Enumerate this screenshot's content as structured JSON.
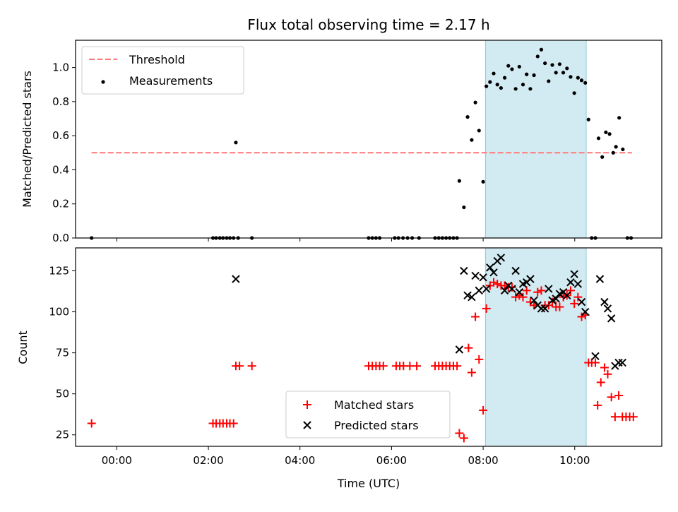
{
  "title": "Flux total observing time = 2.17 h",
  "colors": {
    "threshold": "#ff7777",
    "measurement": "#000000",
    "matched": "#ff0000",
    "predicted": "#000000",
    "shade": "#add8e6"
  },
  "chart_data": [
    {
      "type": "scatter",
      "ylabel": "Matched/Predicted stars",
      "xlabel": "",
      "xlim": [
        -0.9,
        11.9
      ],
      "ylim": [
        0,
        1.16
      ],
      "yticks": [
        0.0,
        0.2,
        0.4,
        0.6,
        0.8,
        1.0
      ],
      "ytick_labels": [
        "0.0",
        "0.2",
        "0.4",
        "0.6",
        "0.8",
        "1.0"
      ],
      "xticks": [
        0,
        2,
        4,
        6,
        8,
        10
      ],
      "shaded_span": [
        8.05,
        10.25
      ],
      "legend": {
        "position": "upper-left",
        "threshold": "Threshold",
        "measurements": "Measurements"
      },
      "threshold": {
        "value": 0.5,
        "x_range": [
          -0.55,
          11.25
        ]
      },
      "measurements": [
        [
          -0.55,
          0.0
        ],
        [
          2.1,
          0.0
        ],
        [
          2.17,
          0.0
        ],
        [
          2.25,
          0.0
        ],
        [
          2.32,
          0.0
        ],
        [
          2.4,
          0.0
        ],
        [
          2.47,
          0.0
        ],
        [
          2.55,
          0.0
        ],
        [
          2.6,
          0.56
        ],
        [
          2.65,
          0.0
        ],
        [
          2.95,
          0.0
        ],
        [
          5.5,
          0.0
        ],
        [
          5.58,
          0.0
        ],
        [
          5.66,
          0.0
        ],
        [
          5.74,
          0.0
        ],
        [
          6.07,
          0.0
        ],
        [
          6.15,
          0.0
        ],
        [
          6.25,
          0.0
        ],
        [
          6.35,
          0.0
        ],
        [
          6.45,
          0.0
        ],
        [
          6.6,
          0.0
        ],
        [
          6.95,
          0.0
        ],
        [
          7.03,
          0.0
        ],
        [
          7.11,
          0.0
        ],
        [
          7.19,
          0.0
        ],
        [
          7.27,
          0.0
        ],
        [
          7.35,
          0.0
        ],
        [
          7.43,
          0.0
        ],
        [
          7.48,
          0.335
        ],
        [
          7.58,
          0.18
        ],
        [
          7.66,
          0.71
        ],
        [
          7.75,
          0.575
        ],
        [
          7.83,
          0.795
        ],
        [
          7.91,
          0.63
        ],
        [
          8.0,
          0.33
        ],
        [
          8.07,
          0.89
        ],
        [
          8.15,
          0.915
        ],
        [
          8.23,
          0.965
        ],
        [
          8.31,
          0.9
        ],
        [
          8.39,
          0.88
        ],
        [
          8.47,
          0.94
        ],
        [
          8.55,
          1.01
        ],
        [
          8.63,
          0.99
        ],
        [
          8.71,
          0.875
        ],
        [
          8.79,
          1.005
        ],
        [
          8.87,
          0.9
        ],
        [
          8.95,
          0.96
        ],
        [
          9.03,
          0.875
        ],
        [
          9.11,
          0.955
        ],
        [
          9.19,
          1.065
        ],
        [
          9.27,
          1.105
        ],
        [
          9.35,
          1.025
        ],
        [
          9.43,
          0.92
        ],
        [
          9.51,
          1.015
        ],
        [
          9.59,
          0.97
        ],
        [
          9.67,
          1.02
        ],
        [
          9.75,
          0.97
        ],
        [
          9.83,
          0.995
        ],
        [
          9.91,
          0.945
        ],
        [
          9.99,
          0.85
        ],
        [
          10.07,
          0.94
        ],
        [
          10.15,
          0.925
        ],
        [
          10.23,
          0.91
        ],
        [
          10.3,
          0.695
        ],
        [
          10.37,
          0.0
        ],
        [
          10.45,
          0.0
        ],
        [
          10.52,
          0.585
        ],
        [
          10.6,
          0.475
        ],
        [
          10.68,
          0.62
        ],
        [
          10.76,
          0.61
        ],
        [
          10.84,
          0.5
        ],
        [
          10.9,
          0.535
        ],
        [
          10.97,
          0.705
        ],
        [
          11.05,
          0.52
        ],
        [
          11.15,
          0.0
        ],
        [
          11.23,
          0.0
        ]
      ]
    },
    {
      "type": "scatter",
      "ylabel": "Count",
      "xlabel": "Time (UTC)",
      "xlim": [
        -0.9,
        11.9
      ],
      "ylim": [
        18,
        139
      ],
      "yticks": [
        25,
        50,
        75,
        100,
        125
      ],
      "ytick_labels": [
        "25",
        "50",
        "75",
        "100",
        "125"
      ],
      "xticks": [
        0,
        2,
        4,
        6,
        8,
        10
      ],
      "xtick_labels": [
        "00:00",
        "02:00",
        "04:00",
        "06:00",
        "08:00",
        "10:00"
      ],
      "shaded_span": [
        8.05,
        10.25
      ],
      "legend": {
        "position": "lower-center",
        "matched": "Matched stars",
        "predicted": "Predicted stars"
      },
      "series": [
        {
          "name": "Matched stars",
          "marker": "plus",
          "points": [
            [
              -0.55,
              32
            ],
            [
              2.1,
              32
            ],
            [
              2.17,
              32
            ],
            [
              2.25,
              32
            ],
            [
              2.32,
              32
            ],
            [
              2.4,
              32
            ],
            [
              2.47,
              32
            ],
            [
              2.55,
              32
            ],
            [
              2.6,
              67
            ],
            [
              2.68,
              67
            ],
            [
              2.95,
              67
            ],
            [
              5.5,
              67
            ],
            [
              5.58,
              67
            ],
            [
              5.66,
              67
            ],
            [
              5.74,
              67
            ],
            [
              5.82,
              67
            ],
            [
              6.1,
              67
            ],
            [
              6.18,
              67
            ],
            [
              6.26,
              67
            ],
            [
              6.4,
              67
            ],
            [
              6.55,
              67
            ],
            [
              6.95,
              67
            ],
            [
              7.03,
              67
            ],
            [
              7.11,
              67
            ],
            [
              7.19,
              67
            ],
            [
              7.27,
              67
            ],
            [
              7.35,
              67
            ],
            [
              7.43,
              67
            ],
            [
              7.48,
              26
            ],
            [
              7.58,
              23
            ],
            [
              7.68,
              78
            ],
            [
              7.75,
              63
            ],
            [
              7.83,
              97
            ],
            [
              7.91,
              71
            ],
            [
              8.0,
              40
            ],
            [
              8.07,
              102
            ],
            [
              8.15,
              116
            ],
            [
              8.23,
              118
            ],
            [
              8.31,
              117
            ],
            [
              8.39,
              116
            ],
            [
              8.47,
              116
            ],
            [
              8.55,
              115
            ],
            [
              8.63,
              115
            ],
            [
              8.71,
              109
            ],
            [
              8.79,
              110
            ],
            [
              8.87,
              109
            ],
            [
              8.95,
              113
            ],
            [
              9.03,
              106
            ],
            [
              9.11,
              104
            ],
            [
              9.19,
              112
            ],
            [
              9.27,
              113
            ],
            [
              9.35,
              104
            ],
            [
              9.43,
              104
            ],
            [
              9.51,
              106
            ],
            [
              9.59,
              103
            ],
            [
              9.67,
              103
            ],
            [
              9.75,
              109
            ],
            [
              9.83,
              110
            ],
            [
              9.91,
              113
            ],
            [
              9.99,
              105
            ],
            [
              10.07,
              109
            ],
            [
              10.15,
              97
            ],
            [
              10.23,
              98
            ],
            [
              10.3,
              69
            ],
            [
              10.37,
              69
            ],
            [
              10.45,
              69
            ],
            [
              10.5,
              43
            ],
            [
              10.57,
              57
            ],
            [
              10.65,
              66
            ],
            [
              10.72,
              62
            ],
            [
              10.8,
              48
            ],
            [
              10.88,
              36
            ],
            [
              10.96,
              49
            ],
            [
              11.04,
              36
            ],
            [
              11.12,
              36
            ],
            [
              11.2,
              36
            ],
            [
              11.28,
              36
            ]
          ]
        },
        {
          "name": "Predicted stars",
          "marker": "x",
          "points": [
            [
              2.6,
              120
            ],
            [
              7.48,
              77
            ],
            [
              7.58,
              125
            ],
            [
              7.66,
              110
            ],
            [
              7.75,
              109
            ],
            [
              7.83,
              122
            ],
            [
              7.91,
              113
            ],
            [
              8.0,
              121
            ],
            [
              8.07,
              114
            ],
            [
              8.15,
              127
            ],
            [
              8.23,
              124
            ],
            [
              8.31,
              131
            ],
            [
              8.39,
              133
            ],
            [
              8.47,
              113
            ],
            [
              8.55,
              116
            ],
            [
              8.63,
              114
            ],
            [
              8.71,
              125
            ],
            [
              8.79,
              112
            ],
            [
              8.87,
              117
            ],
            [
              8.95,
              118
            ],
            [
              9.03,
              120
            ],
            [
              9.11,
              107
            ],
            [
              9.19,
              104
            ],
            [
              9.27,
              102
            ],
            [
              9.35,
              102
            ],
            [
              9.43,
              114
            ],
            [
              9.51,
              107
            ],
            [
              9.59,
              108
            ],
            [
              9.67,
              111
            ],
            [
              9.75,
              112
            ],
            [
              9.83,
              110
            ],
            [
              9.91,
              118
            ],
            [
              9.99,
              123
            ],
            [
              10.07,
              117
            ],
            [
              10.15,
              106
            ],
            [
              10.23,
              100
            ],
            [
              10.45,
              73
            ],
            [
              10.55,
              120
            ],
            [
              10.65,
              106
            ],
            [
              10.72,
              102
            ],
            [
              10.8,
              96
            ],
            [
              10.88,
              67
            ],
            [
              10.96,
              69
            ],
            [
              11.04,
              69
            ]
          ]
        }
      ]
    }
  ]
}
